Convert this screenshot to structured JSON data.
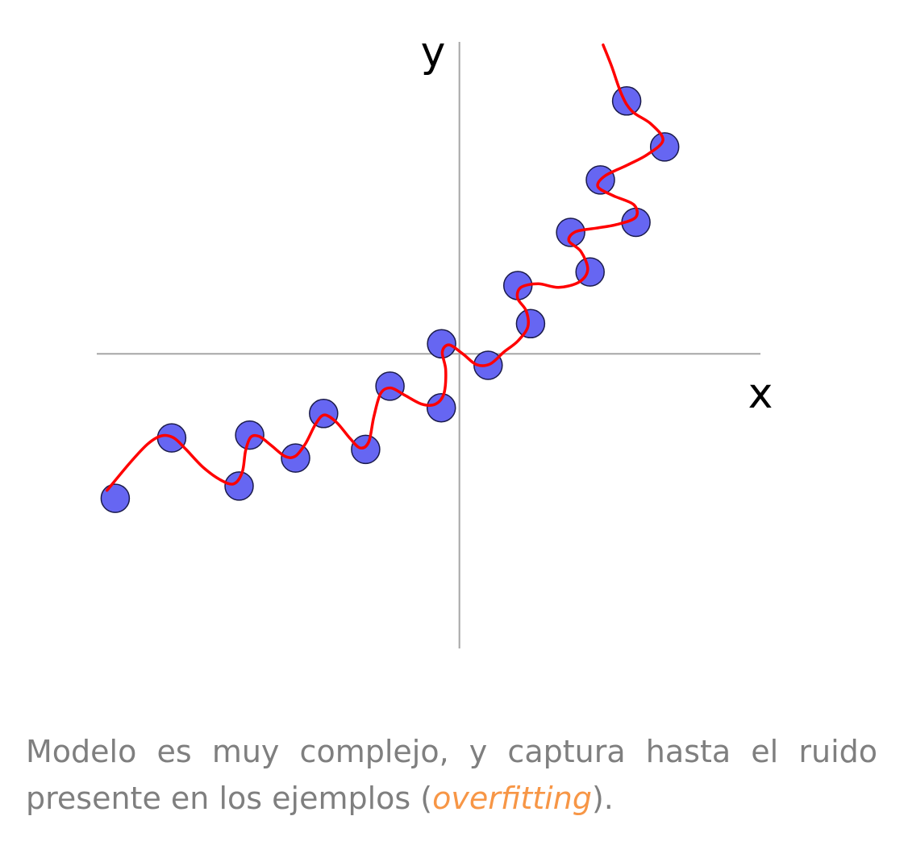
{
  "chart_data": {
    "type": "scatter",
    "xlabel": "x",
    "ylabel": "y",
    "points": [
      {
        "x": -10.06,
        "y": -4.02
      },
      {
        "x": -8.41,
        "y": -2.34
      },
      {
        "x": -6.44,
        "y": -3.68
      },
      {
        "x": -6.13,
        "y": -2.26
      },
      {
        "x": -4.79,
        "y": -2.9
      },
      {
        "x": -3.97,
        "y": -1.66
      },
      {
        "x": -2.74,
        "y": -2.66
      },
      {
        "x": -2.03,
        "y": -0.9
      },
      {
        "x": -0.53,
        "y": -1.5
      },
      {
        "x": -0.52,
        "y": 0.28
      },
      {
        "x": 0.84,
        "y": -0.32
      },
      {
        "x": 1.71,
        "y": 1.9
      },
      {
        "x": 2.08,
        "y": 0.84
      },
      {
        "x": 3.25,
        "y": 3.38
      },
      {
        "x": 3.82,
        "y": 2.28
      },
      {
        "x": 4.12,
        "y": 4.84
      },
      {
        "x": 5.16,
        "y": 3.66
      },
      {
        "x": 4.89,
        "y": 7.04
      },
      {
        "x": 6.0,
        "y": 5.76
      }
    ],
    "fit_curve": [
      [
        -10.3,
        -3.8
      ],
      [
        -9.6,
        -3.0
      ],
      [
        -9.1,
        -2.5
      ],
      [
        -8.7,
        -2.28
      ],
      [
        -8.35,
        -2.34
      ],
      [
        -8.0,
        -2.65
      ],
      [
        -7.5,
        -3.15
      ],
      [
        -7.0,
        -3.5
      ],
      [
        -6.6,
        -3.62
      ],
      [
        -6.35,
        -3.3
      ],
      [
        -6.25,
        -2.7
      ],
      [
        -6.1,
        -2.32
      ],
      [
        -5.85,
        -2.3
      ],
      [
        -5.5,
        -2.55
      ],
      [
        -5.1,
        -2.85
      ],
      [
        -4.8,
        -2.85
      ],
      [
        -4.5,
        -2.5
      ],
      [
        -4.2,
        -1.95
      ],
      [
        -3.95,
        -1.7
      ],
      [
        -3.6,
        -1.9
      ],
      [
        -3.2,
        -2.35
      ],
      [
        -2.9,
        -2.62
      ],
      [
        -2.65,
        -2.45
      ],
      [
        -2.5,
        -1.75
      ],
      [
        -2.3,
        -1.1
      ],
      [
        -2.0,
        -0.95
      ],
      [
        -1.6,
        -1.15
      ],
      [
        -1.1,
        -1.4
      ],
      [
        -0.7,
        -1.4
      ],
      [
        -0.45,
        -1.1
      ],
      [
        -0.4,
        -0.45
      ],
      [
        -0.5,
        0.05
      ],
      [
        -0.3,
        0.25
      ],
      [
        0.1,
        0.0
      ],
      [
        0.5,
        -0.3
      ],
      [
        0.9,
        -0.28
      ],
      [
        1.3,
        0.05
      ],
      [
        1.7,
        0.35
      ],
      [
        2.0,
        0.75
      ],
      [
        1.95,
        1.2
      ],
      [
        1.7,
        1.55
      ],
      [
        1.8,
        1.85
      ],
      [
        2.3,
        1.95
      ],
      [
        2.9,
        1.85
      ],
      [
        3.5,
        2.0
      ],
      [
        3.75,
        2.35
      ],
      [
        3.55,
        2.85
      ],
      [
        3.2,
        3.15
      ],
      [
        3.4,
        3.4
      ],
      [
        4.0,
        3.5
      ],
      [
        4.6,
        3.6
      ],
      [
        5.15,
        3.8
      ],
      [
        5.1,
        4.15
      ],
      [
        4.5,
        4.4
      ],
      [
        4.05,
        4.65
      ],
      [
        4.25,
        4.95
      ],
      [
        4.9,
        5.25
      ],
      [
        5.5,
        5.55
      ],
      [
        5.95,
        5.95
      ],
      [
        5.6,
        6.4
      ],
      [
        5.05,
        6.75
      ],
      [
        4.75,
        7.2
      ],
      [
        4.45,
        8.0
      ],
      [
        4.2,
        8.6
      ]
    ],
    "xlim": [
      -10.6,
      8.8
    ],
    "ylim": [
      -8.2,
      9.4
    ],
    "grid": false,
    "legend": "none",
    "colors": {
      "points": "#6666f2",
      "point_stroke": "#1a1a4a",
      "curve": "#ff0000",
      "axes": "#a6a6a6"
    }
  },
  "caption": {
    "before": "Modelo es muy complejo, y captura hasta el ruido presente en los ejemplos (",
    "highlight": "overfitting",
    "after": ").",
    "text_color": "#7f7f7f",
    "highlight_color": "#f79646"
  }
}
